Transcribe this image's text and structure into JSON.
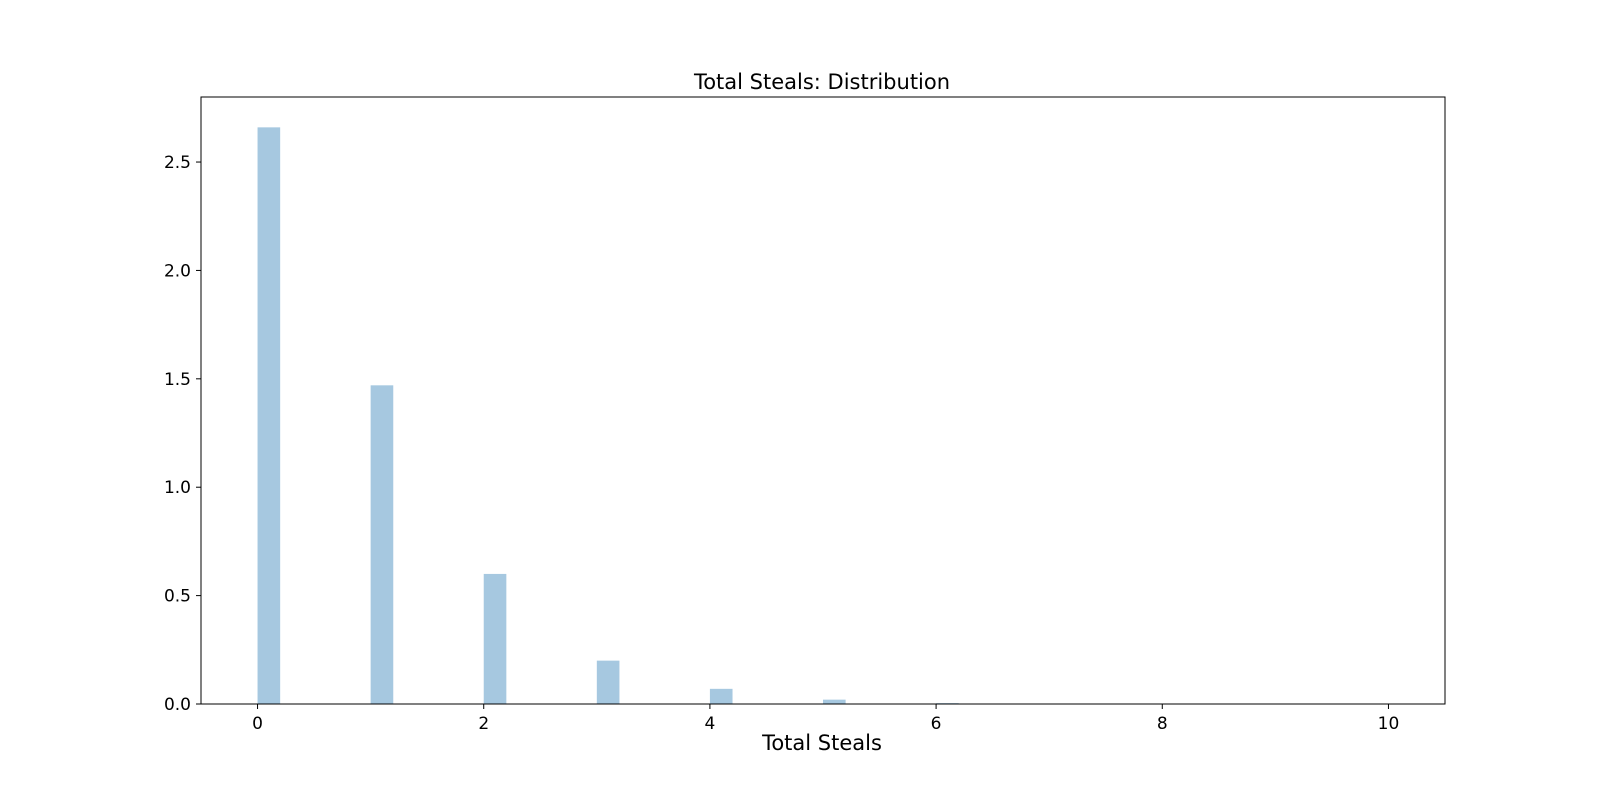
{
  "chart_data": {
    "type": "bar",
    "title": "Total Steals: Distribution",
    "xlabel": "Total Steals",
    "ylabel": "",
    "xlim": [
      -0.5,
      10.5
    ],
    "ylim": [
      0,
      2.8
    ],
    "x_ticks": [
      0,
      2,
      4,
      6,
      8,
      10
    ],
    "x_tick_labels": [
      "0",
      "2",
      "4",
      "6",
      "8",
      "10"
    ],
    "y_ticks": [
      0,
      0.5,
      1.0,
      1.5,
      2.0,
      2.5
    ],
    "y_tick_labels": [
      "0.0",
      "0.5",
      "1.0",
      "1.5",
      "2.0",
      "2.5"
    ],
    "bar_color": "#a6c8e0",
    "grid": false,
    "bins": [
      {
        "x_start": 0.0,
        "x_end": 0.2,
        "value": 2.66
      },
      {
        "x_start": 1.0,
        "x_end": 1.2,
        "value": 1.47
      },
      {
        "x_start": 2.0,
        "x_end": 2.2,
        "value": 0.6
      },
      {
        "x_start": 3.0,
        "x_end": 3.2,
        "value": 0.2
      },
      {
        "x_start": 4.0,
        "x_end": 4.2,
        "value": 0.07
      },
      {
        "x_start": 5.0,
        "x_end": 5.2,
        "value": 0.02
      },
      {
        "x_start": 6.0,
        "x_end": 6.2,
        "value": 0.004
      }
    ]
  }
}
